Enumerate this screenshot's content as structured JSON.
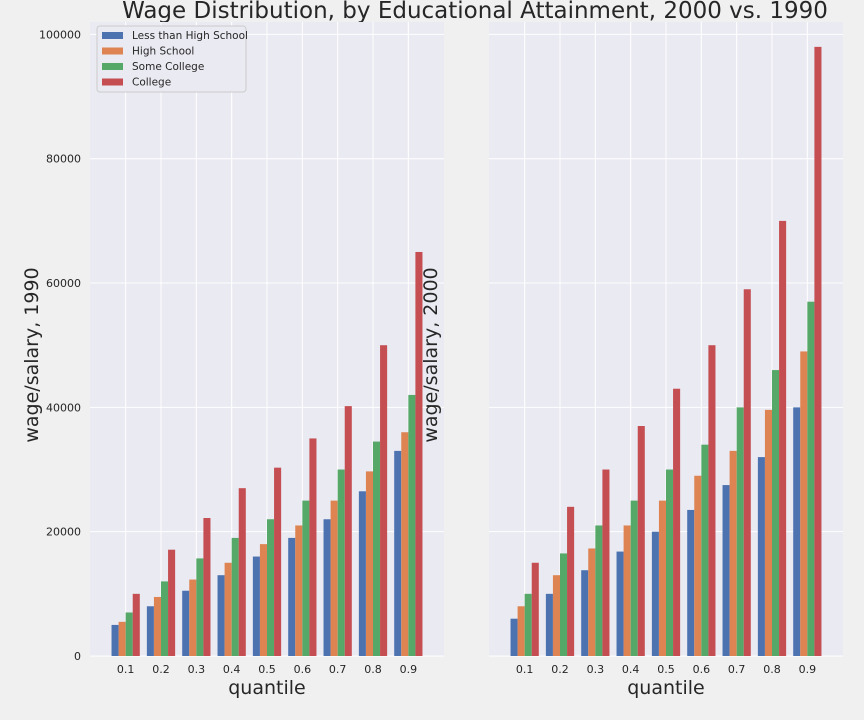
{
  "title": "Wage Distribution, by Educational Attainment, 2000 vs. 1990",
  "colors": {
    "background": "#f0f0f0",
    "plot_bg": "#eaeaf2",
    "grid": "#ffffff",
    "less_than_hs": "#4c72b0",
    "high_school": "#dd8452",
    "some_college": "#55a868",
    "college": "#c44e52"
  },
  "chart_data": [
    {
      "type": "bar",
      "xlabel": "quantile",
      "ylabel": "wage/salary, 1990",
      "ylim": [
        0,
        102000
      ],
      "yticks": [
        "0",
        "20000",
        "40000",
        "60000",
        "80000",
        "100000"
      ],
      "grid": true,
      "legend": "top-left",
      "categories": [
        "0.1",
        "0.2",
        "0.3",
        "0.4",
        "0.5",
        "0.6",
        "0.7",
        "0.8",
        "0.9"
      ],
      "series": [
        {
          "name": "Less than High School",
          "values": [
            5000,
            8000,
            10500,
            13000,
            16000,
            19000,
            22000,
            26500,
            33000
          ]
        },
        {
          "name": "High School",
          "values": [
            5500,
            9500,
            12300,
            15000,
            18000,
            21000,
            25000,
            29700,
            36000
          ]
        },
        {
          "name": "Some College",
          "values": [
            7000,
            12000,
            15700,
            19000,
            22000,
            25000,
            30000,
            34500,
            42000
          ]
        },
        {
          "name": "College",
          "values": [
            10000,
            17100,
            22200,
            27000,
            30300,
            35000,
            40200,
            50000,
            65000
          ]
        }
      ]
    },
    {
      "type": "bar",
      "xlabel": "quantile",
      "ylabel": "wage/salary, 2000",
      "ylim": [
        0,
        102000
      ],
      "grid": true,
      "categories": [
        "0.1",
        "0.2",
        "0.3",
        "0.4",
        "0.5",
        "0.6",
        "0.7",
        "0.8",
        "0.9"
      ],
      "series": [
        {
          "name": "Less than High School",
          "values": [
            6000,
            10000,
            13800,
            16800,
            20000,
            23500,
            27500,
            32000,
            40000
          ]
        },
        {
          "name": "High School",
          "values": [
            8000,
            13000,
            17300,
            21000,
            25000,
            29000,
            33000,
            39600,
            49000
          ]
        },
        {
          "name": "Some College",
          "values": [
            10000,
            16500,
            21000,
            25000,
            30000,
            34000,
            40000,
            46000,
            57000
          ]
        },
        {
          "name": "College",
          "values": [
            15000,
            24000,
            30000,
            37000,
            43000,
            50000,
            59000,
            70000,
            98000
          ]
        }
      ]
    }
  ]
}
